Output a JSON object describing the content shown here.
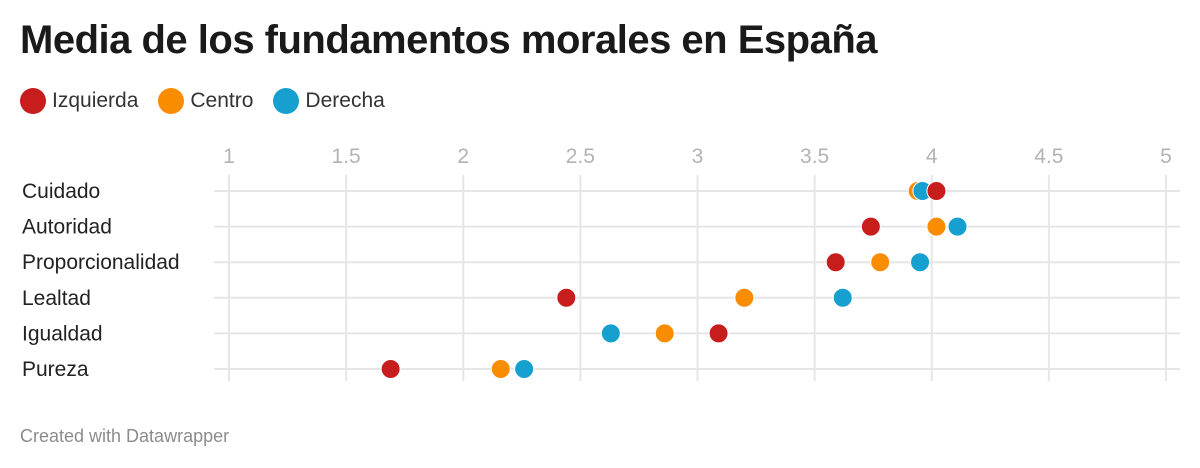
{
  "title": "Media de los fundamentos morales en España",
  "footer": "Created with Datawrapper",
  "legend": [
    {
      "label": "Izquierda",
      "color": "#c71e1d"
    },
    {
      "label": "Centro",
      "color": "#fa8c00"
    },
    {
      "label": "Derecha",
      "color": "#15a0cf"
    }
  ],
  "chart_data": {
    "type": "scatter",
    "title": "Media de los fundamentos morales en España",
    "xlim": [
      1,
      5
    ],
    "x_ticks": [
      "1",
      "1.5",
      "2",
      "2.5",
      "3",
      "3.5",
      "4",
      "4.5",
      "5"
    ],
    "grid": true,
    "legend_position": "top-left",
    "categories": [
      "Cuidado",
      "Autoridad",
      "Proporcionalidad",
      "Lealtad",
      "Igualdad",
      "Pureza"
    ],
    "series": [
      {
        "name": "Izquierda",
        "color": "#c71e1d",
        "values": [
          4.02,
          3.74,
          3.59,
          2.44,
          3.09,
          1.69
        ]
      },
      {
        "name": "Centro",
        "color": "#fa8c00",
        "values": [
          3.94,
          4.02,
          3.78,
          3.2,
          2.86,
          2.16
        ]
      },
      {
        "name": "Derecha",
        "color": "#15a0cf",
        "values": [
          3.96,
          4.11,
          3.95,
          3.62,
          2.63,
          2.26
        ]
      }
    ]
  }
}
